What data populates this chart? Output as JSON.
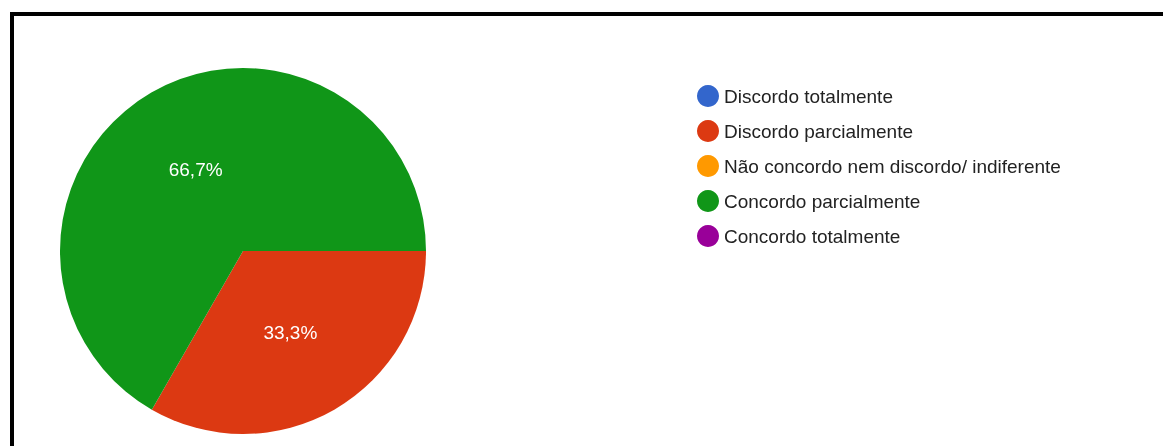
{
  "chart_data": {
    "type": "pie",
    "categories": [
      "Discordo totalmente",
      "Discordo parcialmente",
      "Não concordo nem discordo/ indiferente",
      "Concordo parcialmente",
      "Concordo totalmente"
    ],
    "values": [
      0,
      33.3,
      0,
      66.7,
      0
    ],
    "colors": [
      "#3366cc",
      "#dc3912",
      "#ff9900",
      "#109618",
      "#990099"
    ],
    "value_labels": [
      null,
      "33,3%",
      null,
      "66,7%",
      null
    ],
    "legend": "right"
  }
}
